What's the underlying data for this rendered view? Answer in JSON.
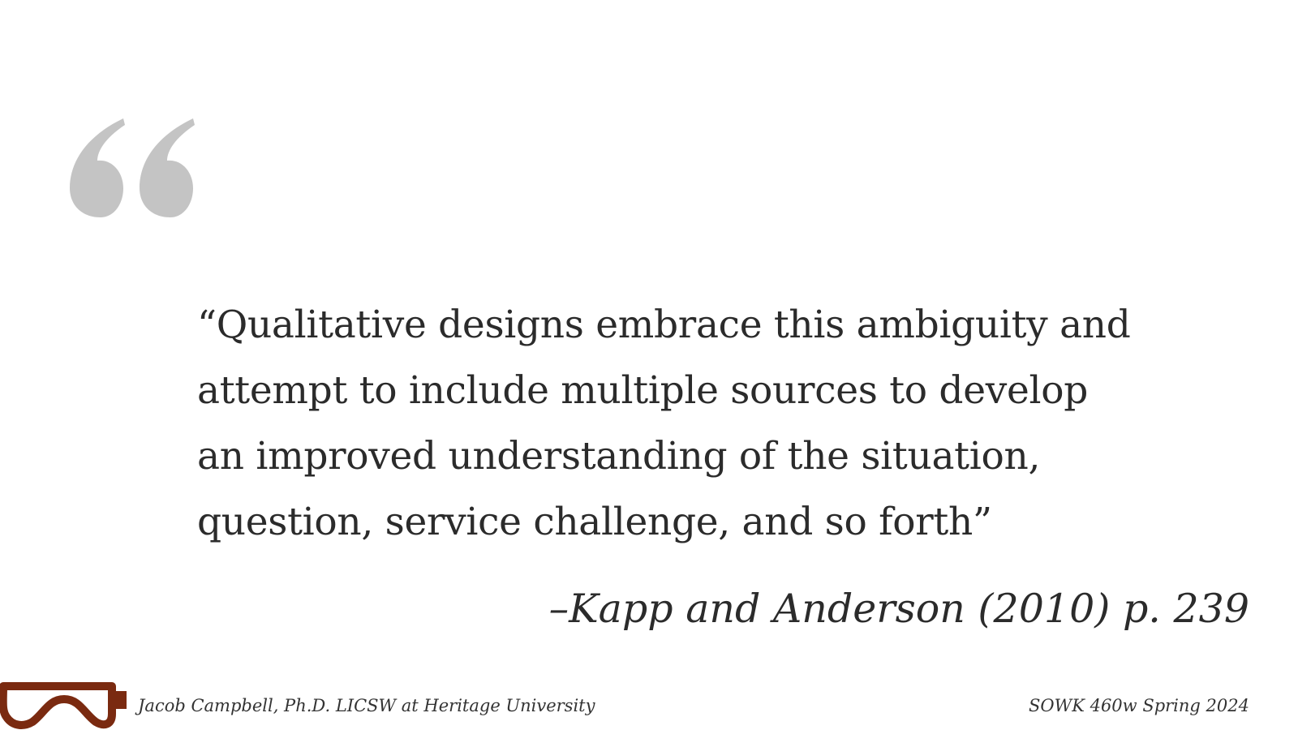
{
  "slide": {
    "quote_lines": [
      "“Qualitative designs embrace this ambiguity and",
      "attempt to include multiple sources to develop",
      "an improved understanding of the situation,",
      "question, service challenge, and so forth”"
    ],
    "attribution": "–Kapp and Anderson (2010) p. 239"
  },
  "footer": {
    "presenter": "Jacob Campbell, Ph.D. LICSW at Heritage University",
    "course": "SOWK 460w Spring 2024"
  },
  "icons": {
    "quote_mark": "open-quote-icon",
    "logo": "goggles-logo-icon"
  },
  "colors": {
    "quote_mark": "#c4c4c4",
    "text": "#2b2b2b",
    "logo": "#7a2a10"
  }
}
